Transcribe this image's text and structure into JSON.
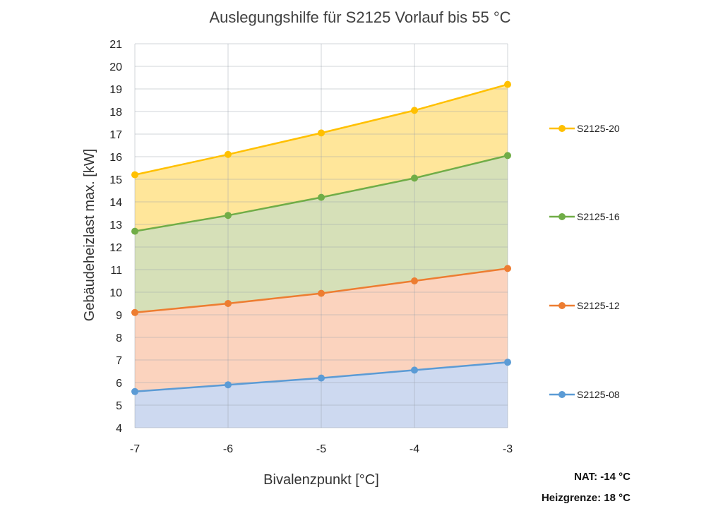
{
  "chart_data": {
    "type": "area",
    "title": "Auslegungshilfe für S2125 Vorlauf bis 55 °C",
    "xlabel": "Bivalenzpunkt [°C]",
    "ylabel": "Gebäudeheizlast max. [kW]",
    "x": [
      -7,
      -6,
      -5,
      -4,
      -3
    ],
    "xlim": [
      -7,
      -3
    ],
    "ylim": [
      4,
      21
    ],
    "yticks": [
      4,
      5,
      6,
      7,
      8,
      9,
      10,
      11,
      12,
      13,
      14,
      15,
      16,
      17,
      18,
      19,
      20,
      21
    ],
    "grid": true,
    "legend": "right",
    "series": [
      {
        "name": "S2125-20",
        "values": [
          15.2,
          16.1,
          17.05,
          18.05,
          19.2
        ],
        "color": "#FFC000",
        "fill": "#FFE69A"
      },
      {
        "name": "S2125-16",
        "values": [
          12.7,
          13.4,
          14.2,
          15.05,
          16.05
        ],
        "color": "#70AD47",
        "fill": "#D6E0B8"
      },
      {
        "name": "S2125-12",
        "values": [
          9.1,
          9.5,
          9.95,
          10.5,
          11.05
        ],
        "color": "#ED7D31",
        "fill": "#FBD3BE"
      },
      {
        "name": "S2125-08",
        "values": [
          5.6,
          5.9,
          6.2,
          6.55,
          6.9
        ],
        "color": "#5B9BD5",
        "fill": "#CDD9F0"
      }
    ]
  },
  "notes": {
    "nat": "NAT: -14 °C",
    "heizgrenze": "Heizgrenze: 18 °C"
  }
}
